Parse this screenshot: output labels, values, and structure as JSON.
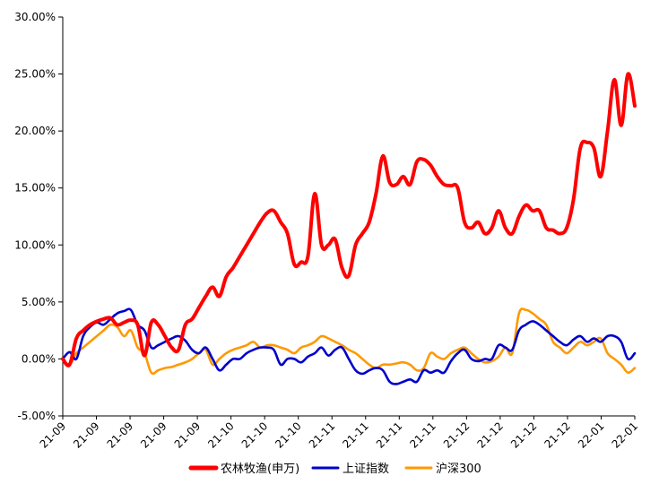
{
  "chart_data": {
    "type": "line",
    "title": "",
    "xlabel": "",
    "ylabel": "",
    "ylim": [
      -0.05,
      0.3
    ],
    "y_ticks": [
      -0.05,
      0.0,
      0.05,
      0.1,
      0.15,
      0.2,
      0.25,
      0.3
    ],
    "y_tick_labels": [
      "-5.00%",
      "0.00%",
      "5.00%",
      "10.00%",
      "15.00%",
      "20.00%",
      "25.00%",
      "30.00%"
    ],
    "x_tick_labels": [
      "21-09",
      "21-09",
      "21-09",
      "21-09",
      "21-09",
      "21-10",
      "21-10",
      "21-10",
      "21-11",
      "21-11",
      "21-11",
      "21-11",
      "21-12",
      "21-12",
      "21-12",
      "21-12",
      "22-01",
      "22-01"
    ],
    "x_count": 85,
    "grid": false,
    "legend_position": "bottom",
    "series": [
      {
        "name": "农林牧渔(申万)",
        "color": "#ff0000",
        "values": [
          0.0,
          -0.005,
          0.018,
          0.025,
          0.03,
          0.033,
          0.035,
          0.036,
          0.03,
          0.032,
          0.034,
          0.03,
          0.003,
          0.032,
          0.03,
          0.02,
          0.01,
          0.008,
          0.03,
          0.035,
          0.045,
          0.055,
          0.063,
          0.055,
          0.072,
          0.08,
          0.09,
          0.1,
          0.11,
          0.12,
          0.128,
          0.13,
          0.12,
          0.11,
          0.083,
          0.085,
          0.09,
          0.145,
          0.1,
          0.1,
          0.105,
          0.08,
          0.073,
          0.1,
          0.11,
          0.12,
          0.145,
          0.178,
          0.155,
          0.153,
          0.16,
          0.153,
          0.173,
          0.175,
          0.17,
          0.16,
          0.153,
          0.152,
          0.15,
          0.12,
          0.115,
          0.12,
          0.11,
          0.115,
          0.13,
          0.115,
          0.11,
          0.125,
          0.135,
          0.13,
          0.13,
          0.115,
          0.113,
          0.11,
          0.115,
          0.14,
          0.185,
          0.19,
          0.185,
          0.16,
          0.2,
          0.245,
          0.205,
          0.25,
          0.222
        ]
      },
      {
        "name": "上证指数",
        "color": "#0000cc",
        "values": [
          0.0,
          0.006,
          0.0,
          0.02,
          0.028,
          0.032,
          0.03,
          0.035,
          0.04,
          0.042,
          0.043,
          0.03,
          0.025,
          0.01,
          0.012,
          0.015,
          0.018,
          0.02,
          0.016,
          0.008,
          0.005,
          0.01,
          0.0,
          -0.01,
          -0.005,
          0.0,
          0.0,
          0.005,
          0.008,
          0.01,
          0.01,
          0.008,
          -0.005,
          0.0,
          0.0,
          -0.003,
          0.002,
          0.005,
          0.01,
          0.003,
          0.008,
          0.01,
          0.0,
          -0.01,
          -0.013,
          -0.01,
          -0.008,
          -0.01,
          -0.02,
          -0.022,
          -0.02,
          -0.018,
          -0.02,
          -0.01,
          -0.012,
          -0.01,
          -0.012,
          -0.002,
          0.005,
          0.008,
          0.0,
          -0.002,
          0.0,
          0.0,
          0.012,
          0.01,
          0.008,
          0.025,
          0.03,
          0.033,
          0.03,
          0.025,
          0.02,
          0.015,
          0.012,
          0.017,
          0.02,
          0.015,
          0.018,
          0.015,
          0.02,
          0.02,
          0.015,
          0.0,
          0.005
        ]
      },
      {
        "name": "沪深300",
        "color": "#ff9900",
        "values": [
          0.0,
          -0.005,
          0.005,
          0.01,
          0.015,
          0.02,
          0.025,
          0.03,
          0.028,
          0.02,
          0.025,
          0.01,
          0.005,
          -0.012,
          -0.01,
          -0.008,
          -0.007,
          -0.005,
          -0.003,
          0.0,
          0.005,
          0.008,
          -0.005,
          0.0,
          0.005,
          0.008,
          0.01,
          0.012,
          0.015,
          0.01,
          0.012,
          0.012,
          0.01,
          0.008,
          0.005,
          0.01,
          0.012,
          0.015,
          0.02,
          0.018,
          0.015,
          0.012,
          0.008,
          0.005,
          0.0,
          -0.005,
          -0.008,
          -0.005,
          -0.005,
          -0.004,
          -0.003,
          -0.005,
          -0.01,
          -0.008,
          0.005,
          0.002,
          0.0,
          0.005,
          0.008,
          0.01,
          0.005,
          0.0,
          -0.003,
          -0.002,
          0.002,
          0.01,
          0.005,
          0.04,
          0.043,
          0.04,
          0.035,
          0.03,
          0.015,
          0.01,
          0.005,
          0.01,
          0.015,
          0.012,
          0.015,
          0.018,
          0.005,
          0.0,
          -0.005,
          -0.012,
          -0.008
        ]
      }
    ]
  }
}
